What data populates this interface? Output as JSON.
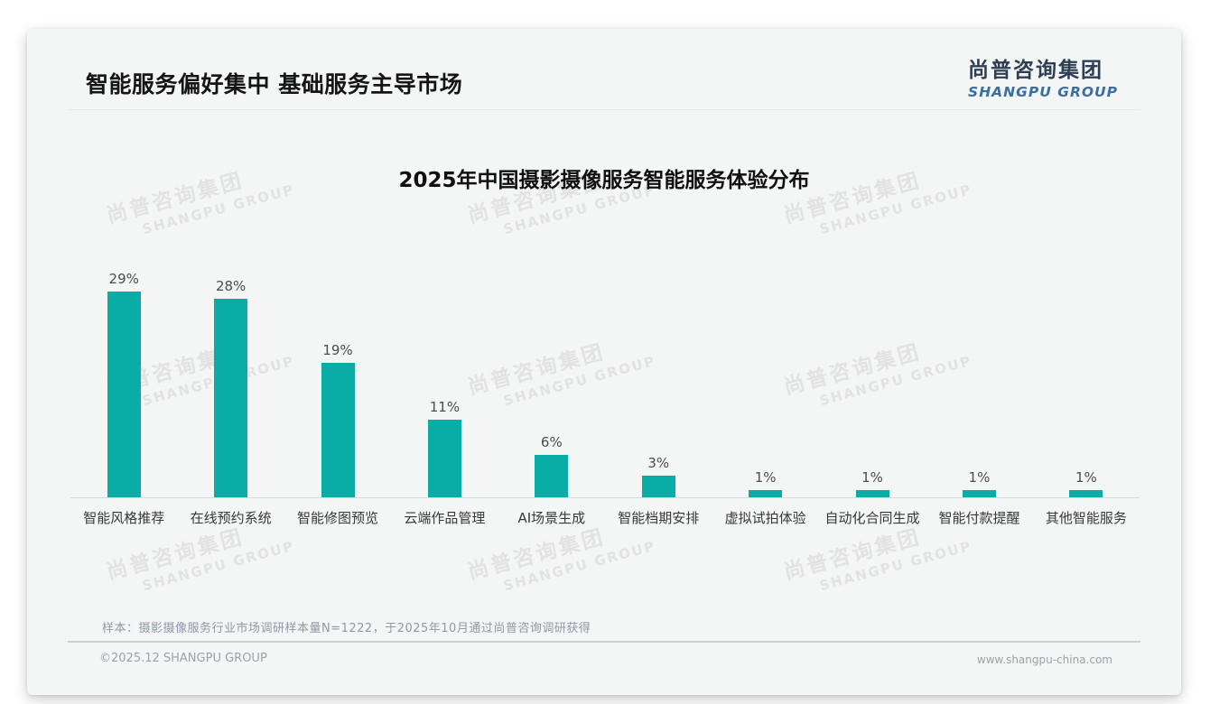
{
  "header": {
    "title": "智能服务偏好集中 基础服务主导市场",
    "logo_cn": "尚普咨询集团",
    "logo_en": "SHANGPU GROUP"
  },
  "chart_data": {
    "type": "bar",
    "title": "2025年中国摄影摄像服务智能服务体验分布",
    "categories": [
      "智能风格推荐",
      "在线预约系统",
      "智能修图预览",
      "云端作品管理",
      "AI场景生成",
      "智能档期安排",
      "虚拟试拍体验",
      "自动化合同生成",
      "智能付款提醒",
      "其他智能服务"
    ],
    "values": [
      29,
      28,
      19,
      11,
      6,
      3,
      1,
      1,
      1,
      1
    ],
    "unit": "%",
    "value_labels": [
      "29%",
      "28%",
      "19%",
      "11%",
      "6%",
      "3%",
      "1%",
      "1%",
      "1%",
      "1%"
    ],
    "xlabel": "",
    "ylabel": "",
    "ylim": [
      0,
      30
    ],
    "grid": false,
    "legend": null,
    "bar_color": "#0aaca6"
  },
  "watermark": {
    "text_cn": "尚普咨询集团",
    "text_en": "SHANGPU GROUP"
  },
  "footer": {
    "note": "样本：摄影摄像服务行业市场调研样本量N=1222，于2025年10月通过尚普咨询调研获得",
    "copyright": "©2025.12 SHANGPU GROUP",
    "website": "www.shangpu-china.com"
  },
  "colors": {
    "bar": "#0aaca6",
    "card_background": "#f4f5f5",
    "logo_cn": "#2e3f54",
    "logo_en": "#3c6e9f",
    "watermark": "#e2e2e2",
    "note_text": "#8d99a6",
    "footer_text": "#9aa2a9"
  }
}
